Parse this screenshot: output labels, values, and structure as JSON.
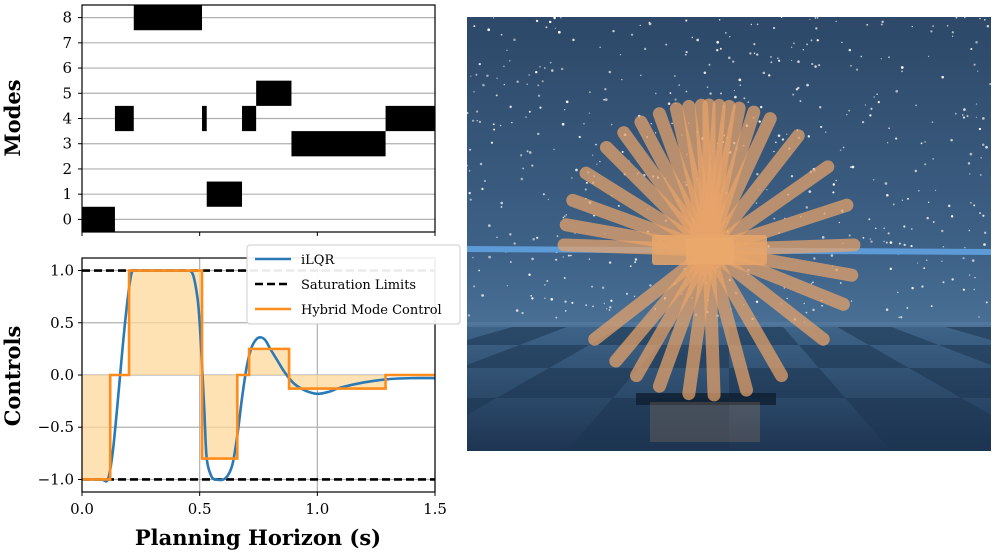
{
  "colors": {
    "ilqr": "#2a7ab8",
    "hybrid": "#ff8c1a",
    "fill": "#ffd899",
    "saturation": "#000000",
    "mode_block": "#000000",
    "grid": "#b0b0b0"
  },
  "chart_data": [
    {
      "type": "heatmap",
      "ylabel": "Modes",
      "y_ticks": [
        "0",
        "1",
        "2",
        "3",
        "4",
        "5",
        "6",
        "7",
        "8"
      ],
      "x_range": [
        0,
        1.5
      ],
      "y_range": [
        -0.5,
        8.5
      ],
      "grid": "horizontal",
      "mode_schedule": [
        {
          "mode": 0,
          "start": 0.0,
          "end": 0.14
        },
        {
          "mode": 4,
          "start": 0.14,
          "end": 0.22
        },
        {
          "mode": 8,
          "start": 0.22,
          "end": 0.51
        },
        {
          "mode": 4,
          "start": 0.51,
          "end": 0.53
        },
        {
          "mode": 1,
          "start": 0.53,
          "end": 0.68
        },
        {
          "mode": 4,
          "start": 0.68,
          "end": 0.74
        },
        {
          "mode": 5,
          "start": 0.74,
          "end": 0.89
        },
        {
          "mode": 3,
          "start": 0.89,
          "end": 1.29
        },
        {
          "mode": 4,
          "start": 1.29,
          "end": 1.5
        }
      ]
    },
    {
      "type": "line",
      "xlabel": "Planning Horizon (s)",
      "ylabel": "Controls",
      "xlim": [
        0,
        1.5
      ],
      "ylim": [
        -1.12,
        1.12
      ],
      "x_ticks": [
        "0.0",
        "0.5",
        "1.0",
        "1.5"
      ],
      "x_tick_values": [
        0,
        0.5,
        1.0,
        1.5
      ],
      "y_ticks": [
        "−1.0",
        "−0.5",
        "0.0",
        "0.5",
        "1.0"
      ],
      "y_tick_values": [
        -1.0,
        -0.5,
        0.0,
        0.5,
        1.0
      ],
      "grid": true,
      "legend_position": "top-right",
      "series": [
        {
          "name": "iLQR",
          "style": "smooth",
          "x": [
            0.0,
            0.08,
            0.11,
            0.13,
            0.15,
            0.17,
            0.19,
            0.21,
            0.23,
            0.25,
            0.3,
            0.35,
            0.4,
            0.44,
            0.47,
            0.49,
            0.5,
            0.51,
            0.52,
            0.53,
            0.55,
            0.57,
            0.6,
            0.62,
            0.64,
            0.66,
            0.68,
            0.7,
            0.72,
            0.74,
            0.76,
            0.78,
            0.8,
            0.83,
            0.86,
            0.9,
            0.95,
            1.0,
            1.05,
            1.1,
            1.2,
            1.3,
            1.4,
            1.5
          ],
          "y": [
            -1.0,
            -1.0,
            -1.0,
            -0.75,
            -0.3,
            0.2,
            0.65,
            0.97,
            1.0,
            1.0,
            1.0,
            1.0,
            1.0,
            1.0,
            0.97,
            0.75,
            0.5,
            0.1,
            -0.35,
            -0.8,
            -0.97,
            -1.0,
            -1.0,
            -0.96,
            -0.85,
            -0.58,
            -0.22,
            0.08,
            0.26,
            0.34,
            0.36,
            0.33,
            0.25,
            0.14,
            0.03,
            -0.08,
            -0.15,
            -0.18,
            -0.16,
            -0.12,
            -0.07,
            -0.04,
            -0.03,
            -0.03
          ]
        },
        {
          "name": "Saturation Limits",
          "style": "dashed",
          "levels": [
            1.0,
            -1.0
          ]
        },
        {
          "name": "Hybrid Mode Control",
          "style": "steps",
          "segments": [
            {
              "start": 0.0,
              "end": 0.12,
              "value": -1.0
            },
            {
              "start": 0.12,
              "end": 0.2,
              "value": 0.0
            },
            {
              "start": 0.2,
              "end": 0.51,
              "value": 1.0
            },
            {
              "start": 0.51,
              "end": 0.66,
              "value": -0.8
            },
            {
              "start": 0.66,
              "end": 0.71,
              "value": 0.0
            },
            {
              "start": 0.71,
              "end": 0.88,
              "value": 0.25
            },
            {
              "start": 0.88,
              "end": 1.29,
              "value": -0.13
            },
            {
              "start": 1.29,
              "end": 1.5,
              "value": 0.0
            }
          ]
        }
      ]
    }
  ],
  "scene": {
    "description_icon": "robot-simulation-render"
  }
}
